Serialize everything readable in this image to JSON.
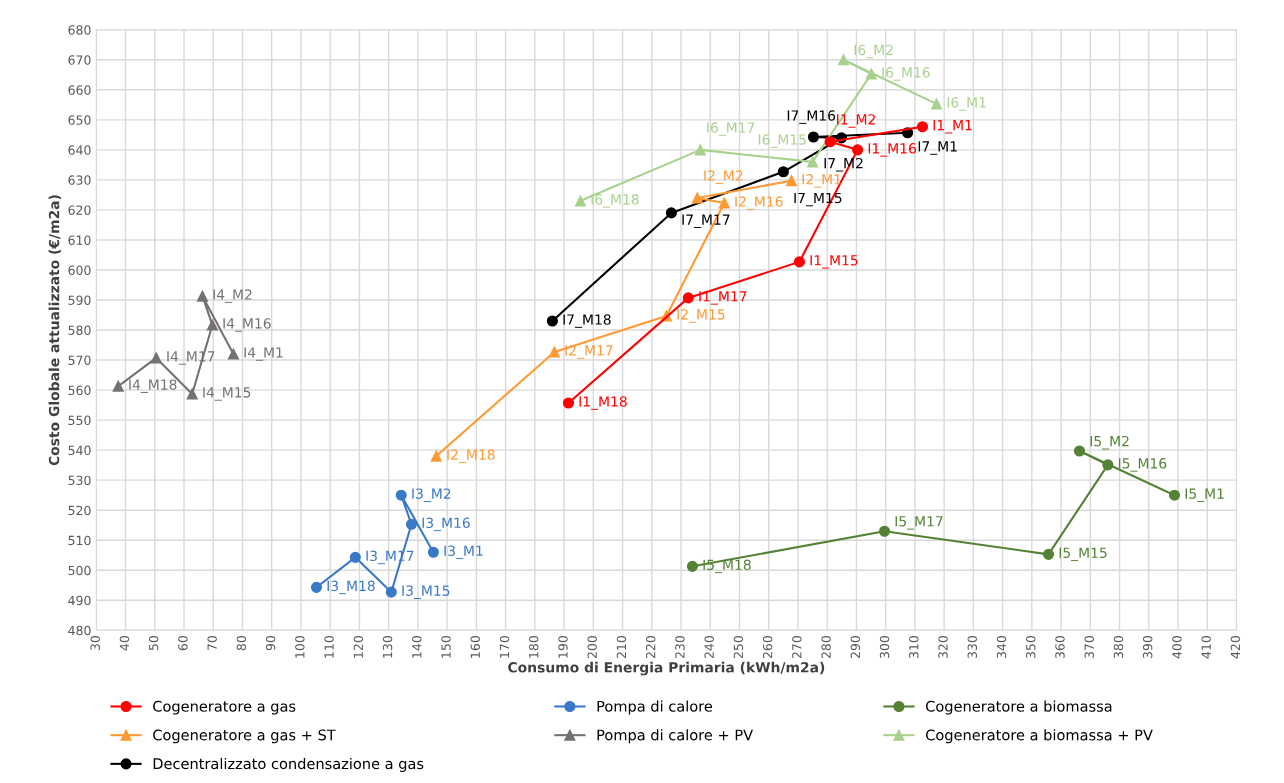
{
  "chart_data": {
    "type": "line",
    "xlabel": "Consumo di Energia Primaria (kWh/m2a)",
    "ylabel": "Costo Globale attualizzato (€/m2a)",
    "xlim": [
      30,
      420
    ],
    "xticks": [
      30,
      40,
      50,
      60,
      70,
      80,
      90,
      100,
      110,
      120,
      130,
      140,
      150,
      160,
      170,
      180,
      190,
      200,
      210,
      220,
      230,
      240,
      250,
      260,
      270,
      280,
      290,
      300,
      310,
      320,
      330,
      340,
      350,
      360,
      370,
      380,
      390,
      400,
      410,
      420
    ],
    "ylim": [
      480,
      680
    ],
    "yticks": [
      480,
      490,
      500,
      510,
      520,
      530,
      540,
      550,
      560,
      570,
      580,
      590,
      600,
      610,
      620,
      630,
      640,
      650,
      660,
      670,
      680
    ],
    "grid": true,
    "legend": "bottom",
    "series": [
      {
        "name": "Cogeneratore a gas",
        "color": "#ff0000",
        "marker": "circle",
        "x": [
          312.6,
          281,
          290.4,
          270.5,
          232.5,
          191.5
        ],
        "values": [
          647.7,
          642.7,
          640,
          602.7,
          590.7,
          555.7
        ]
      },
      {
        "name": "Pompa di calore",
        "color": "#3a78c8",
        "marker": "circle",
        "x": [
          145.3,
          134.3,
          137.8,
          130.9,
          118.6,
          105.3
        ],
        "values": [
          506,
          525,
          515.3,
          492.7,
          504.3,
          494.3
        ]
      },
      {
        "name": "Cogeneratore a biomassa",
        "color": "#548235",
        "marker": "circle",
        "x": [
          398.8,
          366.3,
          376,
          355.7,
          299.6,
          233.9
        ],
        "values": [
          525,
          539.7,
          535.1,
          505.3,
          513,
          501.3
        ]
      },
      {
        "name": "Cogeneratore a gas + ST",
        "color": "#ff9933",
        "marker": "triangle",
        "x": [
          267.8,
          235.6,
          244.8,
          225,
          186.7,
          146.3
        ],
        "values": [
          629.7,
          624,
          622.3,
          584.7,
          572.7,
          538
        ]
      },
      {
        "name": "Pompa di calore + PV",
        "color": "#767171",
        "marker": "triangle",
        "x": [
          76.9,
          66.3,
          69.7,
          62.8,
          50.5,
          37.5
        ],
        "values": [
          572,
          591.3,
          581.7,
          558.7,
          570.7,
          561.3
        ]
      },
      {
        "name": "Cogeneratore a biomassa + PV",
        "color": "#a9d18e",
        "marker": "triangle",
        "x": [
          317.4,
          285.6,
          295.1,
          275,
          236.6,
          195.6
        ],
        "values": [
          655.3,
          670,
          665.3,
          636,
          640,
          623
        ]
      },
      {
        "name": "Decentralizzato condensazione a gas",
        "color": "#000000",
        "marker": "circle",
        "x": [
          307.5,
          275.3,
          284.9,
          265,
          226.7,
          186
        ],
        "values": [
          645.7,
          644.3,
          644,
          632.7,
          619,
          583
        ]
      }
    ],
    "annotations": [
      {
        "text": "I1_M1",
        "x": 312.6,
        "y": 647.7
      },
      {
        "text": "I1_M2",
        "x": 281,
        "y": 642.7
      },
      {
        "text": "I1_M16",
        "x": 290.4,
        "y": 640
      },
      {
        "text": "I1_M15",
        "x": 270.5,
        "y": 602.7
      },
      {
        "text": "I1_M17",
        "x": 232.5,
        "y": 590.7
      },
      {
        "text": "I1_M18",
        "x": 191.5,
        "y": 555.7
      },
      {
        "text": "I2_M1",
        "x": 267.8,
        "y": 629.7
      },
      {
        "text": "I2_M2",
        "x": 235.6,
        "y": 624
      },
      {
        "text": "I2_M16",
        "x": 244.8,
        "y": 622.3
      },
      {
        "text": "I2_M15",
        "x": 225,
        "y": 584.7
      },
      {
        "text": "I2_M17",
        "x": 186.7,
        "y": 572.7
      },
      {
        "text": "I2_M18",
        "x": 146.3,
        "y": 538
      },
      {
        "text": "I3_M1",
        "x": 145.3,
        "y": 506
      },
      {
        "text": "I3_M2",
        "x": 134.3,
        "y": 525
      },
      {
        "text": "I3_M16",
        "x": 137.8,
        "y": 515.3
      },
      {
        "text": "I3_M15",
        "x": 130.9,
        "y": 492.7
      },
      {
        "text": "I3_M17",
        "x": 118.6,
        "y": 504.3
      },
      {
        "text": "I3_M18",
        "x": 105.3,
        "y": 494.3
      },
      {
        "text": "I4_M1",
        "x": 76.9,
        "y": 572
      },
      {
        "text": "I4_M2",
        "x": 66.3,
        "y": 591.3
      },
      {
        "text": "I4_M16",
        "x": 69.7,
        "y": 581.7
      },
      {
        "text": "I4_M15",
        "x": 62.8,
        "y": 558.7
      },
      {
        "text": "I4_M17",
        "x": 50.5,
        "y": 570.7
      },
      {
        "text": "I4_M18",
        "x": 37.5,
        "y": 561.3
      },
      {
        "text": "I5_M1",
        "x": 398.8,
        "y": 525
      },
      {
        "text": "I5_M2",
        "x": 366.3,
        "y": 539.7
      },
      {
        "text": "I5_M16",
        "x": 376,
        "y": 535.1
      },
      {
        "text": "I5_M15",
        "x": 355.7,
        "y": 505.3
      },
      {
        "text": "I5_M17",
        "x": 299.6,
        "y": 513
      },
      {
        "text": "I5_M18",
        "x": 233.9,
        "y": 501.3
      },
      {
        "text": "I6_M1",
        "x": 317.4,
        "y": 655.3
      },
      {
        "text": "I6_M2",
        "x": 285.6,
        "y": 670
      },
      {
        "text": "I6_M16",
        "x": 295.1,
        "y": 665.3
      },
      {
        "text": "I6_M15",
        "x": 275,
        "y": 636
      },
      {
        "text": "I6_M17",
        "x": 236.6,
        "y": 640
      },
      {
        "text": "I6_M18",
        "x": 195.6,
        "y": 623
      },
      {
        "text": "I7_M1",
        "x": 307.5,
        "y": 645.7
      },
      {
        "text": "I7_M2",
        "x": 275.3,
        "y": 644.3
      },
      {
        "text": "I7_M16",
        "x": 284.9,
        "y": 644
      },
      {
        "text": "I7_M15",
        "x": 265,
        "y": 632.7
      },
      {
        "text": "I7_M17",
        "x": 226.7,
        "y": 619
      },
      {
        "text": "I7_M18",
        "x": 186,
        "y": 583
      }
    ]
  }
}
